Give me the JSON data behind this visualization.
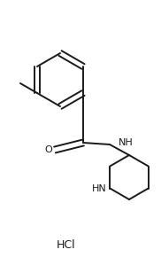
{
  "background_color": "#ffffff",
  "line_color": "#1a1a1a",
  "line_width": 1.4,
  "font_size_label": 8,
  "font_size_hcl": 9,
  "hcl_text": "HCl",
  "label_O": "O",
  "label_NH_amide": "NH",
  "label_HN_pip": "HN",
  "fig_width": 1.82,
  "fig_height": 3.08,
  "dpi": 100
}
